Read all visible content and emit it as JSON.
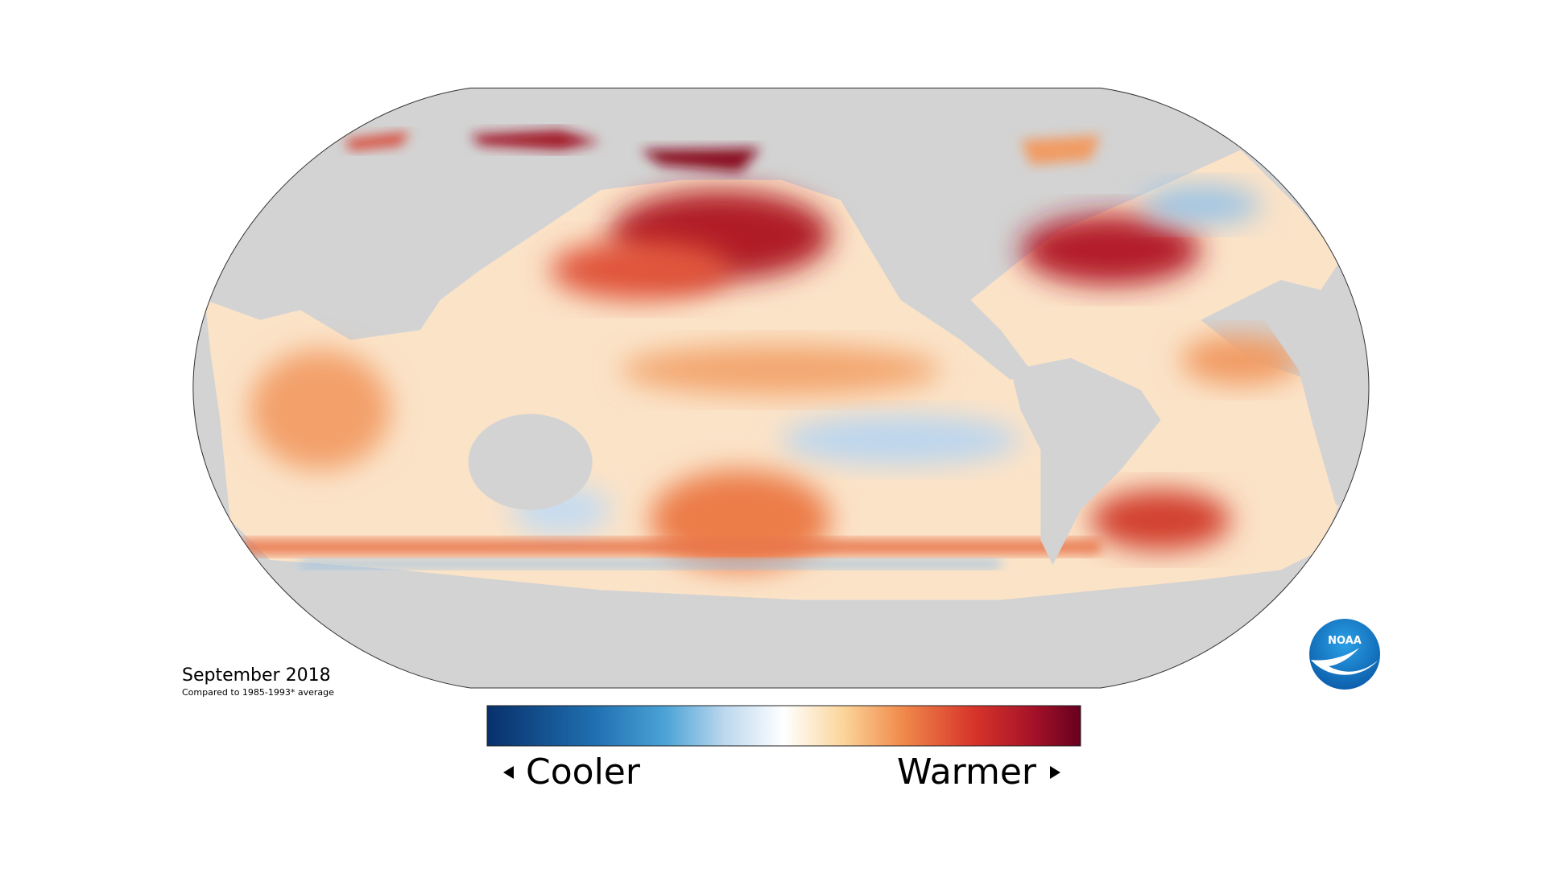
{
  "caption": {
    "title": "September 2018",
    "subtitle": "Compared to 1985-1993* average"
  },
  "legend": {
    "low": "Cooler",
    "high": "Warmer"
  },
  "logo": {
    "text": "NOAA"
  }
}
